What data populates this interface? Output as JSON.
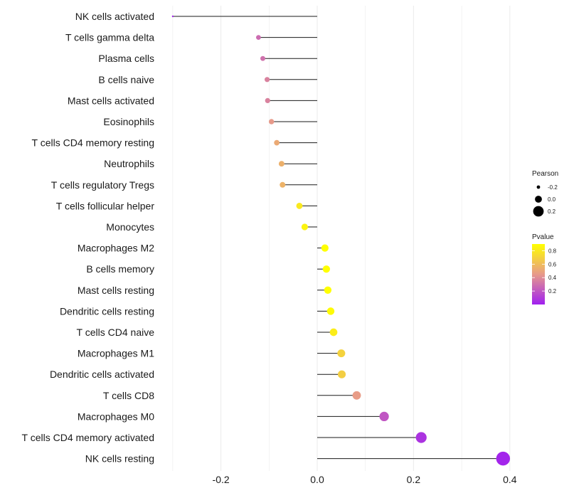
{
  "chart_data": {
    "type": "lollipop",
    "categories": [
      "NK cells activated",
      "T cells gamma delta",
      "Plasma cells",
      "B cells naive",
      "Mast cells activated",
      "Eosinophils",
      "T cells CD4 memory resting",
      "Neutrophils",
      "T cells regulatory  Tregs ",
      "T cells follicular helper",
      "Monocytes",
      "Macrophages M2",
      "B cells memory",
      "Mast cells resting",
      "Dendritic cells resting",
      "T cells CD4 naive",
      "Macrophages M1",
      "Dendritic cells activated",
      "T cells CD8",
      "Macrophages M0",
      "T cells CD4 memory activated",
      "NK cells resting"
    ],
    "values": [
      -0.3,
      -0.122,
      -0.113,
      -0.104,
      -0.103,
      -0.095,
      -0.084,
      -0.074,
      -0.072,
      -0.037,
      -0.026,
      0.016,
      0.019,
      0.022,
      0.028,
      0.034,
      0.05,
      0.051,
      0.082,
      0.139,
      0.216,
      0.386
    ],
    "pvalues": [
      0.02,
      0.28,
      0.3,
      0.36,
      0.36,
      0.45,
      0.52,
      0.55,
      0.56,
      0.8,
      0.85,
      0.95,
      0.94,
      0.93,
      0.88,
      0.82,
      0.7,
      0.68,
      0.46,
      0.2,
      0.07,
      0.02
    ],
    "xlim": [
      -0.35,
      0.42
    ],
    "xticks": [
      "-0.2",
      "0.0",
      "0.2",
      "0.4"
    ],
    "xtick_values": [
      -0.2,
      0.0,
      0.2,
      0.4
    ],
    "size_legend": {
      "title": "Pearson",
      "labels": [
        "-0.2",
        "0.0",
        "0.2"
      ],
      "values": [
        -0.2,
        0.0,
        0.2
      ]
    },
    "color_legend": {
      "title": "Pvalue",
      "labels": [
        "0.8",
        "0.6",
        "0.4",
        "0.2"
      ],
      "values": [
        0.8,
        0.6,
        0.4,
        0.2
      ],
      "range": [
        0.0,
        0.9
      ],
      "low_color": "#a020f0",
      "mid_color": "#e79a8a",
      "high_color": "#ffff00"
    }
  }
}
